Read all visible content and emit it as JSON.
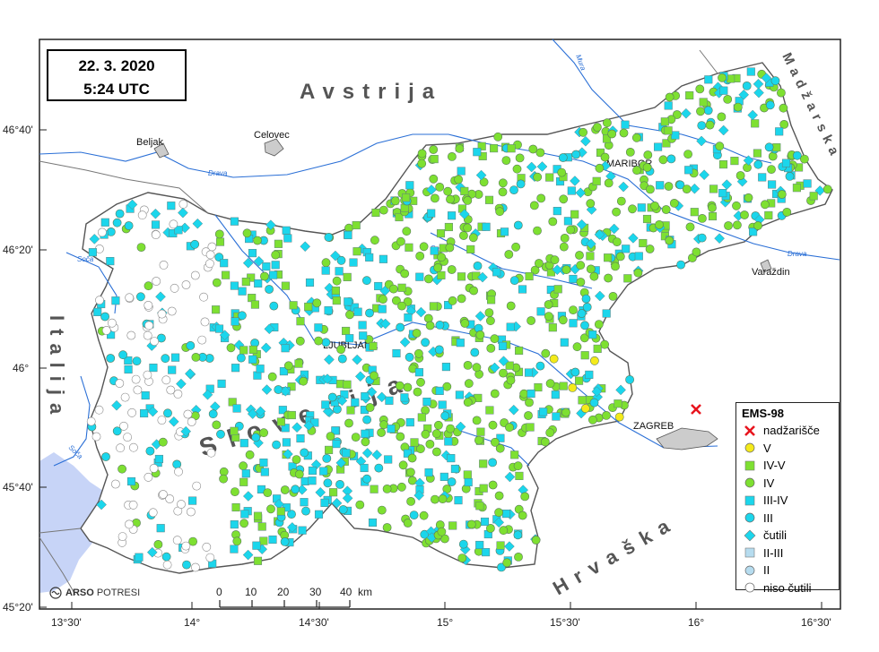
{
  "header": {
    "date": "22. 3. 2020",
    "time": "5:24 UTC"
  },
  "axes": {
    "lat_ticks": [
      "46°40'",
      "46°20'",
      "46°",
      "45°40'",
      "45°20'"
    ],
    "lon_ticks": [
      "13°30'",
      "14°",
      "14°30'",
      "15°",
      "15°30'",
      "16°",
      "16°30'"
    ]
  },
  "countries": {
    "austria": "Avstrija",
    "hungary": "Madžarska",
    "italy": "Italija",
    "slovenia": "Slovenija",
    "croatia": "Hrvaška"
  },
  "cities": {
    "beljak": "Beljak",
    "celovec": "Celovec",
    "maribor": "MARIBOR",
    "ljubljana": "LJUBLJANA",
    "zagreb": "ZAGREB",
    "varazdin": "Varaždin"
  },
  "rivers": {
    "mura": "Mura",
    "drava_w": "Drava",
    "drava_e": "Drava",
    "soca_n": "Soča",
    "soca_s": "Soča",
    "sava": "Sava"
  },
  "scalebar": {
    "labels": [
      "0",
      "10",
      "20",
      "30",
      "40"
    ],
    "unit": "km"
  },
  "brand": {
    "logo": "ARSO",
    "name": "POTRESI"
  },
  "legend": {
    "title": "EMS-98",
    "items": [
      {
        "label": "nadžarišče",
        "symbol": "cross",
        "color": "#e8141e"
      },
      {
        "label": "V",
        "symbol": "circle",
        "color": "#f4ea1a"
      },
      {
        "label": "IV-V",
        "symbol": "square",
        "color": "#7ee031"
      },
      {
        "label": "IV",
        "symbol": "circle",
        "color": "#7ee031"
      },
      {
        "label": "III-IV",
        "symbol": "square",
        "color": "#1bd6ec"
      },
      {
        "label": "III",
        "symbol": "circle",
        "color": "#1bd6ec"
      },
      {
        "label": "čutili",
        "symbol": "diamond",
        "color": "#1bd6ec"
      },
      {
        "label": "II-III",
        "symbol": "square",
        "color": "#b6dcef"
      },
      {
        "label": "II",
        "symbol": "circle",
        "color": "#b6dcef"
      },
      {
        "label": "niso čutili",
        "symbol": "circle-open",
        "color": "#ffffff"
      }
    ]
  },
  "colors": {
    "land": "#ffffff",
    "sea": "#c7d4f7",
    "river": "#2a6fd6",
    "border": "#555555"
  }
}
